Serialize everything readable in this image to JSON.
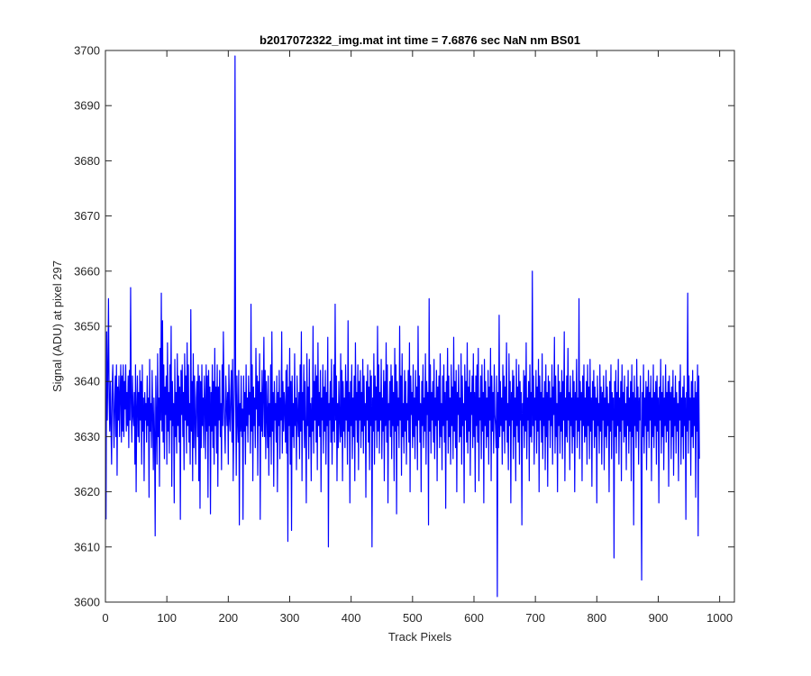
{
  "chart_data": {
    "type": "line",
    "title": "b2017072322_img.mat int time = 7.6876 sec  NaN nm BS01",
    "xlabel": "Track Pixels",
    "ylabel": "Signal (ADU) at pixel 297",
    "xlim": [
      0,
      1024
    ],
    "ylim": [
      3600,
      3700
    ],
    "xticks": [
      0,
      100,
      200,
      300,
      400,
      500,
      600,
      700,
      800,
      900,
      1000
    ],
    "yticks": [
      3600,
      3610,
      3620,
      3630,
      3640,
      3650,
      3660,
      3670,
      3680,
      3690,
      3700
    ],
    "grid": false,
    "line_color": "#0000ff",
    "series": [
      {
        "x_start": 1,
        "x_step": 1,
        "values": [
          3615,
          3649,
          3633,
          3642,
          3655,
          3637,
          3631,
          3640,
          3632,
          3625,
          3639,
          3643,
          3635,
          3628,
          3636,
          3641,
          3630,
          3643,
          3623,
          3639,
          3633,
          3641,
          3630,
          3638,
          3643,
          3629,
          3641,
          3631,
          3643,
          3630,
          3640,
          3635,
          3643,
          3631,
          3638,
          3632,
          3641,
          3628,
          3642,
          3633,
          3657,
          3636,
          3629,
          3641,
          3634,
          3632,
          3638,
          3625,
          3643,
          3620,
          3635,
          3641,
          3630,
          3638,
          3629,
          3642,
          3633,
          3640,
          3625,
          3643,
          3631,
          3637,
          3622,
          3638,
          3633,
          3636,
          3629,
          3641,
          3632,
          3637,
          3619,
          3644,
          3631,
          3636,
          3628,
          3642,
          3634,
          3624,
          3637,
          3630,
          3612,
          3641,
          3633,
          3625,
          3645,
          3630,
          3637,
          3621,
          3646,
          3633,
          3656,
          3631,
          3651,
          3629,
          3643,
          3626,
          3639,
          3634,
          3641,
          3625,
          3647,
          3631,
          3638,
          3627,
          3643,
          3633,
          3650,
          3621,
          3640,
          3632,
          3636,
          3618,
          3644,
          3630,
          3638,
          3627,
          3645,
          3632,
          3641,
          3629,
          3639,
          3615,
          3642,
          3634,
          3643,
          3630,
          3638,
          3624,
          3645,
          3633,
          3641,
          3627,
          3647,
          3632,
          3643,
          3629,
          3636,
          3625,
          3653,
          3631,
          3640,
          3622,
          3645,
          3628,
          3641,
          3633,
          3625,
          3637,
          3640,
          3630,
          3643,
          3622,
          3641,
          3617,
          3640,
          3628,
          3643,
          3632,
          3637,
          3628,
          3641,
          3636,
          3626,
          3643,
          3631,
          3641,
          3619,
          3642,
          3632,
          3639,
          3616,
          3638,
          3631,
          3643,
          3628,
          3640,
          3625,
          3646,
          3632,
          3639,
          3627,
          3643,
          3621,
          3639,
          3633,
          3642,
          3630,
          3636,
          3624,
          3643,
          3632,
          3649,
          3637,
          3632,
          3627,
          3641,
          3636,
          3632,
          3638,
          3625,
          3643,
          3634,
          3631,
          3638,
          3642,
          3629,
          3644,
          3622,
          3632,
          3641,
          3699,
          3638,
          3623,
          3641,
          3633,
          3629,
          3642,
          3614,
          3636,
          3631,
          3641,
          3630,
          3635,
          3615,
          3641,
          3631,
          3638,
          3625,
          3643,
          3632,
          3637,
          3629,
          3641,
          3634,
          3638,
          3627,
          3654,
          3631,
          3643,
          3622,
          3639,
          3632,
          3637,
          3628,
          3646,
          3635,
          3641,
          3623,
          3640,
          3632,
          3645,
          3615,
          3638,
          3631,
          3642,
          3630,
          3637,
          3648,
          3630,
          3642,
          3626,
          3640,
          3634,
          3628,
          3641,
          3623,
          3636,
          3630,
          3643,
          3625,
          3649,
          3631,
          3638,
          3621,
          3640,
          3633,
          3636,
          3629,
          3641,
          3620,
          3638,
          3632,
          3642,
          3626,
          3637,
          3633,
          3649,
          3627,
          3640,
          3631,
          3638,
          3635,
          3629,
          3642,
          3627,
          3643,
          3611,
          3639,
          3632,
          3646,
          3625,
          3640,
          3613,
          3641,
          3630,
          3636,
          3628,
          3645,
          3632,
          3637,
          3624,
          3641,
          3634,
          3630,
          3638,
          3626,
          3643,
          3631,
          3649,
          3622,
          3638,
          3633,
          3643,
          3628,
          3640,
          3631,
          3618,
          3645,
          3632,
          3639,
          3626,
          3644,
          3630,
          3636,
          3622,
          3637,
          3631,
          3650,
          3627,
          3640,
          3633,
          3643,
          3629,
          3641,
          3624,
          3647,
          3632,
          3638,
          3630,
          3642,
          3620,
          3637,
          3633,
          3643,
          3627,
          3639,
          3631,
          3642,
          3625,
          3638,
          3632,
          3648,
          3610,
          3636,
          3633,
          3640,
          3629,
          3644,
          3625,
          3637,
          3631,
          3643,
          3629,
          3654,
          3633,
          3641,
          3622,
          3636,
          3628,
          3640,
          3633,
          3629,
          3645,
          3630,
          3642,
          3622,
          3640,
          3631,
          3637,
          3628,
          3643,
          3633,
          3640,
          3625,
          3651,
          3631,
          3638,
          3618,
          3640,
          3632,
          3643,
          3626,
          3637,
          3630,
          3641,
          3622,
          3647,
          3633,
          3638,
          3629,
          3643,
          3624,
          3640,
          3633,
          3642,
          3628,
          3638,
          3631,
          3644,
          3627,
          3641,
          3632,
          3636,
          3619,
          3640,
          3633,
          3643,
          3629,
          3639,
          3624,
          3642,
          3632,
          3641,
          3610,
          3637,
          3631,
          3645,
          3625,
          3641,
          3633,
          3639,
          3628,
          3650,
          3631,
          3643,
          3627,
          3638,
          3633,
          3644,
          3626,
          3637,
          3631,
          3642,
          3622,
          3640,
          3632,
          3647,
          3629,
          3643,
          3618,
          3636,
          3633,
          3640,
          3630,
          3643,
          3626,
          3641,
          3632,
          3638,
          3622,
          3646,
          3631,
          3643,
          3616,
          3640,
          3632,
          3637,
          3628,
          3650,
          3633,
          3641,
          3623,
          3645,
          3630,
          3636,
          3627,
          3642,
          3631,
          3640,
          3625,
          3636,
          3633,
          3642,
          3629,
          3647,
          3620,
          3641,
          3634,
          3638,
          3628,
          3643,
          3630,
          3637,
          3626,
          3642,
          3632,
          3639,
          3624,
          3650,
          3633,
          3641,
          3629,
          3636,
          3620,
          3640,
          3632,
          3643,
          3628,
          3637,
          3631,
          3645,
          3625,
          3640,
          3634,
          3638,
          3614,
          3655,
          3631,
          3643,
          3627,
          3638,
          3633,
          3640,
          3629,
          3644,
          3626,
          3637,
          3632,
          3642,
          3622,
          3639,
          3633,
          3641,
          3628,
          3645,
          3630,
          3636,
          3624,
          3641,
          3632,
          3643,
          3629,
          3638,
          3617,
          3640,
          3633,
          3646,
          3627,
          3641,
          3630,
          3637,
          3625,
          3643,
          3632,
          3639,
          3626,
          3648,
          3631,
          3640,
          3628,
          3642,
          3620,
          3638,
          3634,
          3643,
          3629,
          3637,
          3630,
          3645,
          3625,
          3641,
          3632,
          3636,
          3618,
          3643,
          3633,
          3640,
          3629,
          3647,
          3627,
          3639,
          3631,
          3642,
          3623,
          3638,
          3634,
          3641,
          3628,
          3645,
          3630,
          3638,
          3620,
          3641,
          3632,
          3643,
          3629,
          3646,
          3622,
          3637,
          3633,
          3641,
          3626,
          3643,
          3631,
          3638,
          3618,
          3644,
          3632,
          3640,
          3628,
          3637,
          3630,
          3642,
          3625,
          3639,
          3633,
          3646,
          3622,
          3641,
          3631,
          3638,
          3627,
          3643,
          3634,
          3632,
          3628,
          3641,
          3601,
          3638,
          3628,
          3652,
          3630,
          3640,
          3632,
          3637,
          3625,
          3643,
          3631,
          3641,
          3627,
          3639,
          3633,
          3647,
          3629,
          3636,
          3624,
          3645,
          3632,
          3640,
          3618,
          3638,
          3633,
          3642,
          3626,
          3641,
          3630,
          3637,
          3622,
          3644,
          3632,
          3639,
          3629,
          3643,
          3625,
          3640,
          3633,
          3638,
          3614,
          3636,
          3632,
          3642,
          3628,
          3641,
          3631,
          3647,
          3626,
          3637,
          3633,
          3640,
          3622,
          3643,
          3630,
          3638,
          3629,
          3660,
          3632,
          3641,
          3625,
          3637,
          3633,
          3642,
          3627,
          3639,
          3631,
          3644,
          3620,
          3641,
          3633,
          3638,
          3629,
          3645,
          3626,
          3637,
          3632,
          3640,
          3624,
          3643,
          3630,
          3638,
          3621,
          3641,
          3633,
          3640,
          3628,
          3637,
          3632,
          3643,
          3625,
          3639,
          3634,
          3648,
          3627,
          3641,
          3630,
          3636,
          3620,
          3643,
          3632,
          3640,
          3627,
          3638,
          3631,
          3642,
          3626,
          3640,
          3633,
          3649,
          3622,
          3637,
          3630,
          3641,
          3629,
          3646,
          3633,
          3638,
          3624,
          3641,
          3632,
          3637,
          3627,
          3642,
          3630,
          3640,
          3620,
          3638,
          3633,
          3644,
          3628,
          3637,
          3631,
          3655,
          3626,
          3640,
          3633,
          3638,
          3622,
          3641,
          3632,
          3643,
          3629,
          3637,
          3630,
          3640,
          3625,
          3643,
          3632,
          3639,
          3626,
          3644,
          3631,
          3637,
          3621,
          3640,
          3633,
          3642,
          3628,
          3639,
          3630,
          3637,
          3618,
          3641,
          3632,
          3636,
          3627,
          3643,
          3631,
          3639,
          3625,
          3638,
          3633,
          3641,
          3624,
          3637,
          3630,
          3642,
          3628,
          3639,
          3632,
          3636,
          3620,
          3640,
          3631,
          3643,
          3626,
          3638,
          3633,
          3637,
          3608,
          3640,
          3630,
          3642,
          3627,
          3638,
          3632,
          3644,
          3625,
          3637,
          3631,
          3640,
          3622,
          3643,
          3633,
          3638,
          3629,
          3641,
          3630,
          3636,
          3624,
          3639,
          3632,
          3642,
          3627,
          3637,
          3631,
          3640,
          3622,
          3643,
          3630,
          3638,
          3614,
          3641,
          3632,
          3637,
          3628,
          3644,
          3631,
          3639,
          3625,
          3637,
          3633,
          3641,
          3626,
          3604,
          3638,
          3630,
          3643,
          3627,
          3637,
          3632,
          3640,
          3624,
          3639,
          3631,
          3642,
          3628,
          3638,
          3633,
          3641,
          3622,
          3637,
          3630,
          3643,
          3628,
          3638,
          3632,
          3640,
          3625,
          3641,
          3631,
          3637,
          3618,
          3639,
          3633,
          3644,
          3627,
          3638,
          3630,
          3641,
          3624,
          3637,
          3632,
          3643,
          3629,
          3638,
          3631,
          3640,
          3621,
          3641,
          3633,
          3638,
          3626,
          3639,
          3630,
          3642,
          3623,
          3637,
          3632,
          3641,
          3627,
          3638,
          3631,
          3636,
          3622,
          3640,
          3633,
          3643,
          3625,
          3637,
          3630,
          3639,
          3626,
          3641,
          3632,
          3637,
          3615,
          3638,
          3631,
          3656,
          3627,
          3641,
          3633,
          3637,
          3623,
          3640,
          3630,
          3642,
          3628,
          3637,
          3632,
          3640,
          3619,
          3638,
          3631,
          3643,
          3612,
          3641,
          3626
        ]
      }
    ]
  }
}
